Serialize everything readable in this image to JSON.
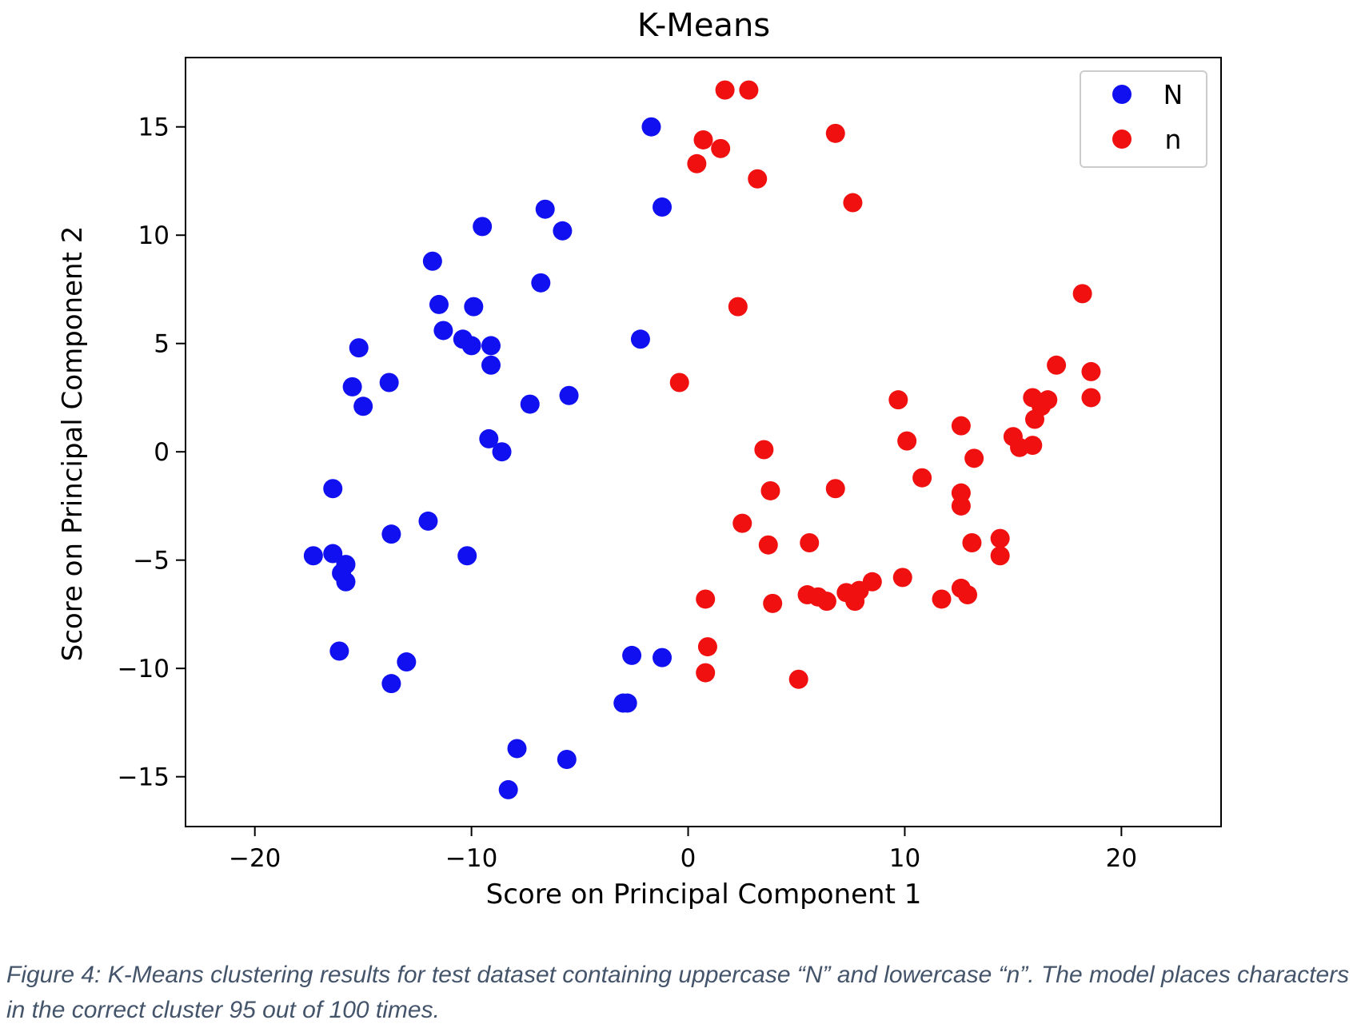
{
  "chart_data": {
    "type": "scatter",
    "title": "K-Means",
    "xlabel": "Score on Principal Component 1",
    "ylabel": "Score on Principal Component 2",
    "xlim": [
      -23.2,
      24.6
    ],
    "ylim": [
      -17.3,
      18.2
    ],
    "xticks": [
      -20,
      -10,
      0,
      10,
      20
    ],
    "yticks": [
      -15,
      -10,
      -5,
      0,
      5,
      10,
      15
    ],
    "xtick_labels": [
      "−20",
      "−10",
      "0",
      "10",
      "20"
    ],
    "ytick_labels": [
      "−15",
      "−10",
      "−5",
      "0",
      "5",
      "10",
      "15"
    ],
    "grid": false,
    "legend_position": "top-right",
    "series": [
      {
        "name": "N",
        "color": "#1010f0",
        "points": [
          [
            -1.7,
            15.0
          ],
          [
            -1.2,
            11.3
          ],
          [
            -6.6,
            11.2
          ],
          [
            -5.8,
            10.2
          ],
          [
            -9.5,
            10.4
          ],
          [
            -11.8,
            8.8
          ],
          [
            -6.8,
            7.8
          ],
          [
            -11.5,
            6.8
          ],
          [
            -9.9,
            6.7
          ],
          [
            -11.3,
            5.6
          ],
          [
            -10.4,
            5.2
          ],
          [
            -10.0,
            4.9
          ],
          [
            -9.1,
            4.9
          ],
          [
            -9.1,
            4.0
          ],
          [
            -15.2,
            4.8
          ],
          [
            -15.5,
            3.0
          ],
          [
            -13.8,
            3.2
          ],
          [
            -15.0,
            2.1
          ],
          [
            -7.3,
            2.2
          ],
          [
            -5.5,
            2.6
          ],
          [
            -2.2,
            5.2
          ],
          [
            -9.2,
            0.6
          ],
          [
            -8.6,
            0.0
          ],
          [
            -16.4,
            -1.7
          ],
          [
            -12.0,
            -3.2
          ],
          [
            -13.7,
            -3.8
          ],
          [
            -17.3,
            -4.8
          ],
          [
            -16.4,
            -4.7
          ],
          [
            -15.8,
            -5.2
          ],
          [
            -16.0,
            -5.6
          ],
          [
            -15.8,
            -6.0
          ],
          [
            -10.2,
            -4.8
          ],
          [
            -16.1,
            -9.2
          ],
          [
            -13.0,
            -9.7
          ],
          [
            -13.7,
            -10.7
          ],
          [
            -2.6,
            -9.4
          ],
          [
            -1.2,
            -9.5
          ],
          [
            -3.0,
            -11.6
          ],
          [
            -2.8,
            -11.6
          ],
          [
            -7.9,
            -13.7
          ],
          [
            -5.6,
            -14.2
          ],
          [
            -8.3,
            -15.6
          ]
        ]
      },
      {
        "name": "n",
        "color": "#f01010",
        "points": [
          [
            1.7,
            16.7
          ],
          [
            2.8,
            16.7
          ],
          [
            0.7,
            14.4
          ],
          [
            1.5,
            14.0
          ],
          [
            0.4,
            13.3
          ],
          [
            6.8,
            14.7
          ],
          [
            3.2,
            12.6
          ],
          [
            7.6,
            11.5
          ],
          [
            2.3,
            6.7
          ],
          [
            -0.4,
            3.2
          ],
          [
            18.2,
            7.3
          ],
          [
            17.0,
            4.0
          ],
          [
            18.6,
            3.7
          ],
          [
            18.6,
            2.5
          ],
          [
            9.7,
            2.4
          ],
          [
            15.9,
            2.5
          ],
          [
            16.6,
            2.4
          ],
          [
            16.3,
            2.1
          ],
          [
            16.0,
            1.5
          ],
          [
            12.6,
            1.2
          ],
          [
            15.0,
            0.7
          ],
          [
            15.3,
            0.2
          ],
          [
            15.9,
            0.3
          ],
          [
            10.1,
            0.5
          ],
          [
            13.2,
            -0.3
          ],
          [
            3.5,
            0.1
          ],
          [
            3.8,
            -1.8
          ],
          [
            6.8,
            -1.7
          ],
          [
            10.8,
            -1.2
          ],
          [
            12.6,
            -1.9
          ],
          [
            12.6,
            -2.5
          ],
          [
            2.5,
            -3.3
          ],
          [
            3.7,
            -4.3
          ],
          [
            5.6,
            -4.2
          ],
          [
            13.1,
            -4.2
          ],
          [
            14.4,
            -4.0
          ],
          [
            14.4,
            -4.8
          ],
          [
            9.9,
            -5.8
          ],
          [
            8.5,
            -6.0
          ],
          [
            7.9,
            -6.4
          ],
          [
            7.3,
            -6.5
          ],
          [
            5.5,
            -6.6
          ],
          [
            6.0,
            -6.7
          ],
          [
            6.4,
            -6.9
          ],
          [
            7.7,
            -6.9
          ],
          [
            11.7,
            -6.8
          ],
          [
            12.6,
            -6.3
          ],
          [
            12.9,
            -6.6
          ],
          [
            0.8,
            -6.8
          ],
          [
            3.9,
            -7.0
          ],
          [
            0.9,
            -9.0
          ],
          [
            0.8,
            -10.2
          ],
          [
            5.1,
            -10.5
          ]
        ]
      }
    ]
  },
  "caption": "Figure 4: K-Means clustering results for test dataset containing uppercase “N” and lowercase “n”. The model places characters in the correct cluster 95 out of 100 times."
}
